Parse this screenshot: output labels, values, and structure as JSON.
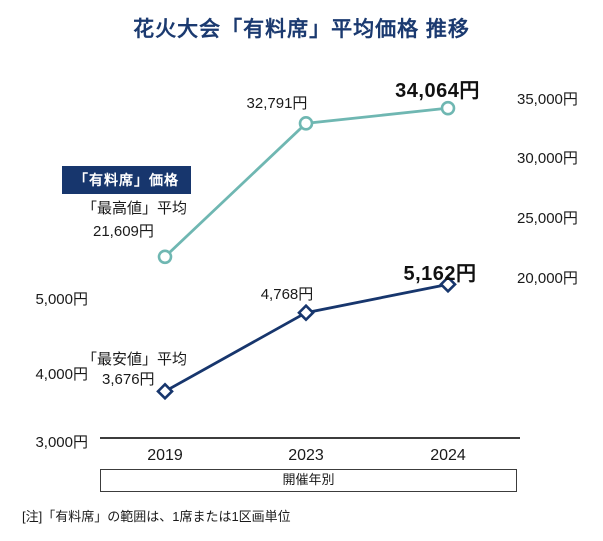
{
  "title": "花火大会「有料席」平均価格 推移",
  "badge_label": "「有料席」価格",
  "note": "[注]「有料席」の範囲は、1席または1区画単位",
  "x_axis_box_label": "開催年別",
  "colors": {
    "navy": "#17366d",
    "teal": "#6fb7b2",
    "title_navy": "#1b3a70",
    "text": "#1a1a1a"
  },
  "chart_data": {
    "type": "line",
    "title": "花火大会「有料席」平均価格 推移",
    "categories": [
      "2019",
      "2023",
      "2024"
    ],
    "x_axis_label": "開催年別",
    "grid": false,
    "legend_position": "left",
    "series": [
      {
        "name": "「最高値」平均",
        "axis": "right",
        "marker": "circle",
        "color": "#6fb7b2",
        "values": [
          21609,
          32791,
          34064
        ],
        "point_labels": [
          "21,609円",
          "32,791円",
          "34,064円"
        ]
      },
      {
        "name": "「最安値」平均",
        "axis": "left",
        "marker": "diamond",
        "color": "#17366d",
        "values": [
          3676,
          4768,
          5162
        ],
        "point_labels": [
          "3,676円",
          "4,768円",
          "5,162円"
        ]
      }
    ],
    "right_axis": {
      "tick_labels": [
        "35,000円",
        "30,000円",
        "25,000円",
        "20,000円"
      ],
      "tick_values": [
        35000,
        30000,
        25000,
        20000
      ],
      "range": [
        20000,
        35000
      ]
    },
    "left_axis": {
      "tick_labels": [
        "5,000円",
        "4,000円",
        "3,000円"
      ],
      "tick_values": [
        5000,
        4000,
        3000
      ],
      "range": [
        3000,
        5000
      ]
    }
  }
}
